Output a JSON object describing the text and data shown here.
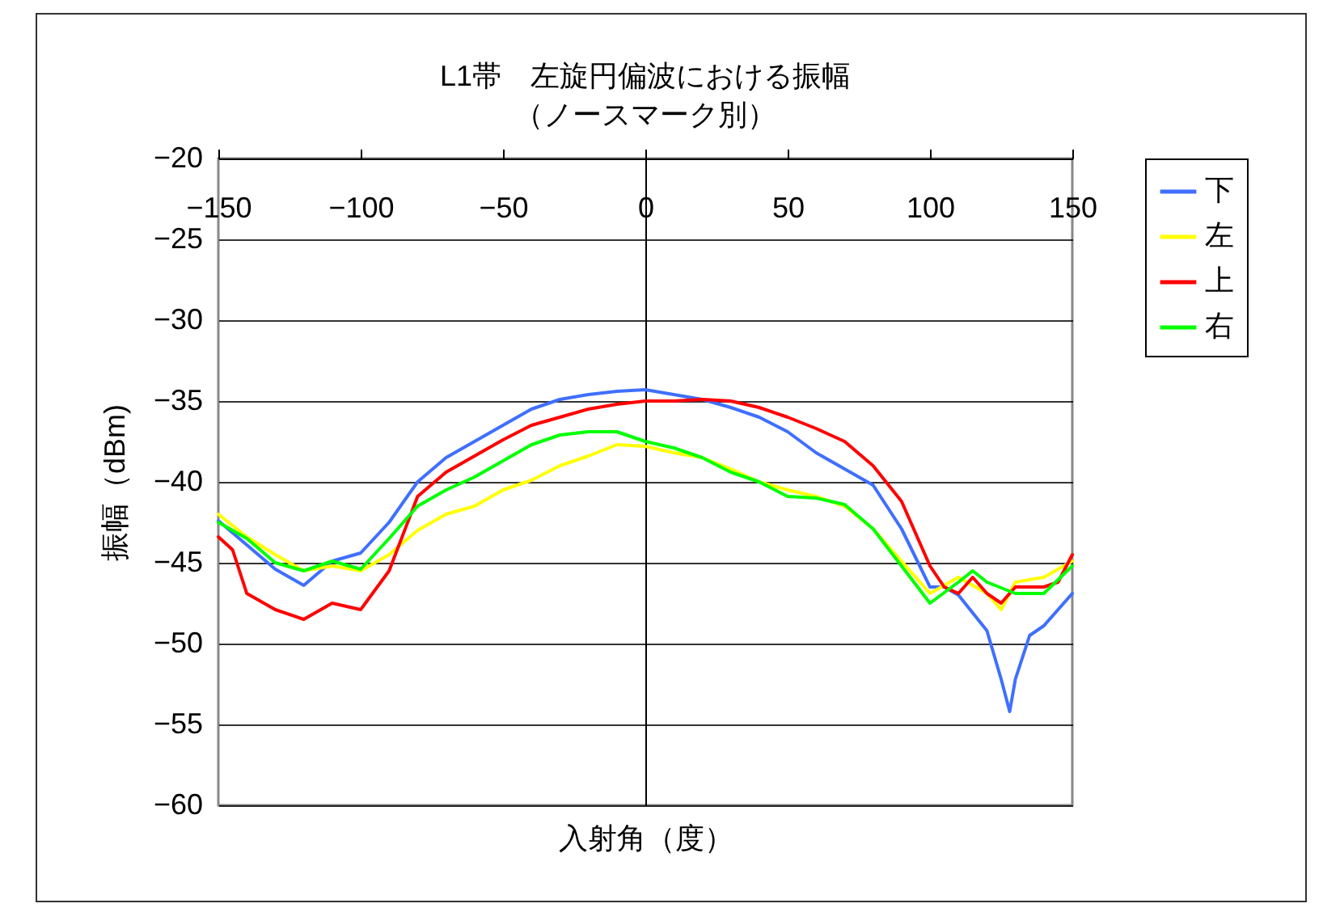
{
  "chart_data": {
    "type": "line",
    "title": "L1帯　左旋円偏波における振幅",
    "subtitle": "（ノースマーク別）",
    "xlabel": "入射角（度）",
    "ylabel": "振幅（dBm)",
    "xlim": [
      -150,
      150
    ],
    "xticks": [
      -150,
      -100,
      -50,
      0,
      50,
      100,
      150
    ],
    "ylim": [
      -60,
      -20
    ],
    "yticks": [
      -60,
      -55,
      -50,
      -45,
      -40,
      -35,
      -30,
      -25,
      -20
    ],
    "grid": "y",
    "legend": "right",
    "marker": "none",
    "line_style": "solid",
    "series": [
      {
        "name": "下",
        "color": "#3f6fff",
        "x": [
          -150,
          -140,
          -130,
          -120,
          -110,
          -100,
          -90,
          -80,
          -70,
          -60,
          -50,
          -40,
          -30,
          -20,
          -10,
          0,
          10,
          20,
          30,
          40,
          50,
          60,
          70,
          80,
          90,
          100,
          105,
          110,
          120,
          125,
          128,
          130,
          135,
          140,
          150
        ],
        "values": [
          -42.4,
          -43.9,
          -45.4,
          -46.4,
          -44.9,
          -44.4,
          -42.5,
          -40,
          -38.5,
          -37.5,
          -36.5,
          -35.5,
          -34.9,
          -34.6,
          -34.4,
          -34.3,
          -34.6,
          -34.9,
          -35.4,
          -36,
          -36.9,
          -38.2,
          -39.2,
          -40.2,
          -42.9,
          -46.5,
          -46.5,
          -47,
          -49.2,
          -52.2,
          -54.2,
          -52.2,
          -49.5,
          -48.9,
          -46.9
        ]
      },
      {
        "name": "左",
        "color": "#ffff00",
        "x": [
          -150,
          -140,
          -130,
          -120,
          -110,
          -100,
          -90,
          -80,
          -70,
          -60,
          -50,
          -40,
          -30,
          -20,
          -10,
          0,
          10,
          20,
          30,
          40,
          50,
          60,
          70,
          80,
          90,
          100,
          110,
          120,
          125,
          130,
          140,
          150
        ],
        "values": [
          -42,
          -43.4,
          -44.5,
          -45.5,
          -45.2,
          -45.5,
          -44.5,
          -43,
          -42,
          -41.5,
          -40.5,
          -39.9,
          -39,
          -38.4,
          -37.7,
          -37.8,
          -38.2,
          -38.5,
          -39.2,
          -40,
          -40.5,
          -40.9,
          -41.5,
          -42.9,
          -44.9,
          -46.9,
          -45.9,
          -46.9,
          -47.9,
          -46.2,
          -45.9,
          -44.9
        ]
      },
      {
        "name": "上",
        "color": "#ff0000",
        "x": [
          -150,
          -145,
          -140,
          -130,
          -120,
          -110,
          -100,
          -90,
          -80,
          -70,
          -60,
          -50,
          -40,
          -30,
          -20,
          -10,
          0,
          10,
          20,
          30,
          40,
          50,
          60,
          70,
          80,
          90,
          100,
          105,
          110,
          115,
          120,
          125,
          130,
          140,
          145,
          150
        ],
        "values": [
          -43.4,
          -44.2,
          -46.9,
          -47.9,
          -48.5,
          -47.5,
          -47.9,
          -45.5,
          -40.9,
          -39.4,
          -38.4,
          -37.4,
          -36.5,
          -36,
          -35.5,
          -35.2,
          -35,
          -35,
          -34.9,
          -35,
          -35.4,
          -36,
          -36.7,
          -37.5,
          -39,
          -41.2,
          -45.2,
          -46.5,
          -46.9,
          -45.9,
          -46.9,
          -47.5,
          -46.5,
          -46.5,
          -46.2,
          -44.5
        ]
      },
      {
        "name": "右",
        "color": "#00ff00",
        "x": [
          -150,
          -140,
          -130,
          -120,
          -110,
          -100,
          -90,
          -80,
          -70,
          -60,
          -50,
          -40,
          -30,
          -20,
          -10,
          0,
          10,
          20,
          30,
          40,
          50,
          60,
          70,
          80,
          90,
          100,
          110,
          115,
          120,
          130,
          140,
          150
        ],
        "values": [
          -42.5,
          -43.5,
          -45,
          -45.5,
          -44.9,
          -45.4,
          -43.5,
          -41.5,
          -40.5,
          -39.7,
          -38.7,
          -37.7,
          -37.1,
          -36.9,
          -36.9,
          -37.5,
          -37.9,
          -38.5,
          -39.4,
          -40,
          -40.9,
          -41,
          -41.4,
          -42.9,
          -45.2,
          -47.5,
          -46.2,
          -45.5,
          -46.2,
          -46.9,
          -46.9,
          -45.2
        ]
      }
    ]
  }
}
